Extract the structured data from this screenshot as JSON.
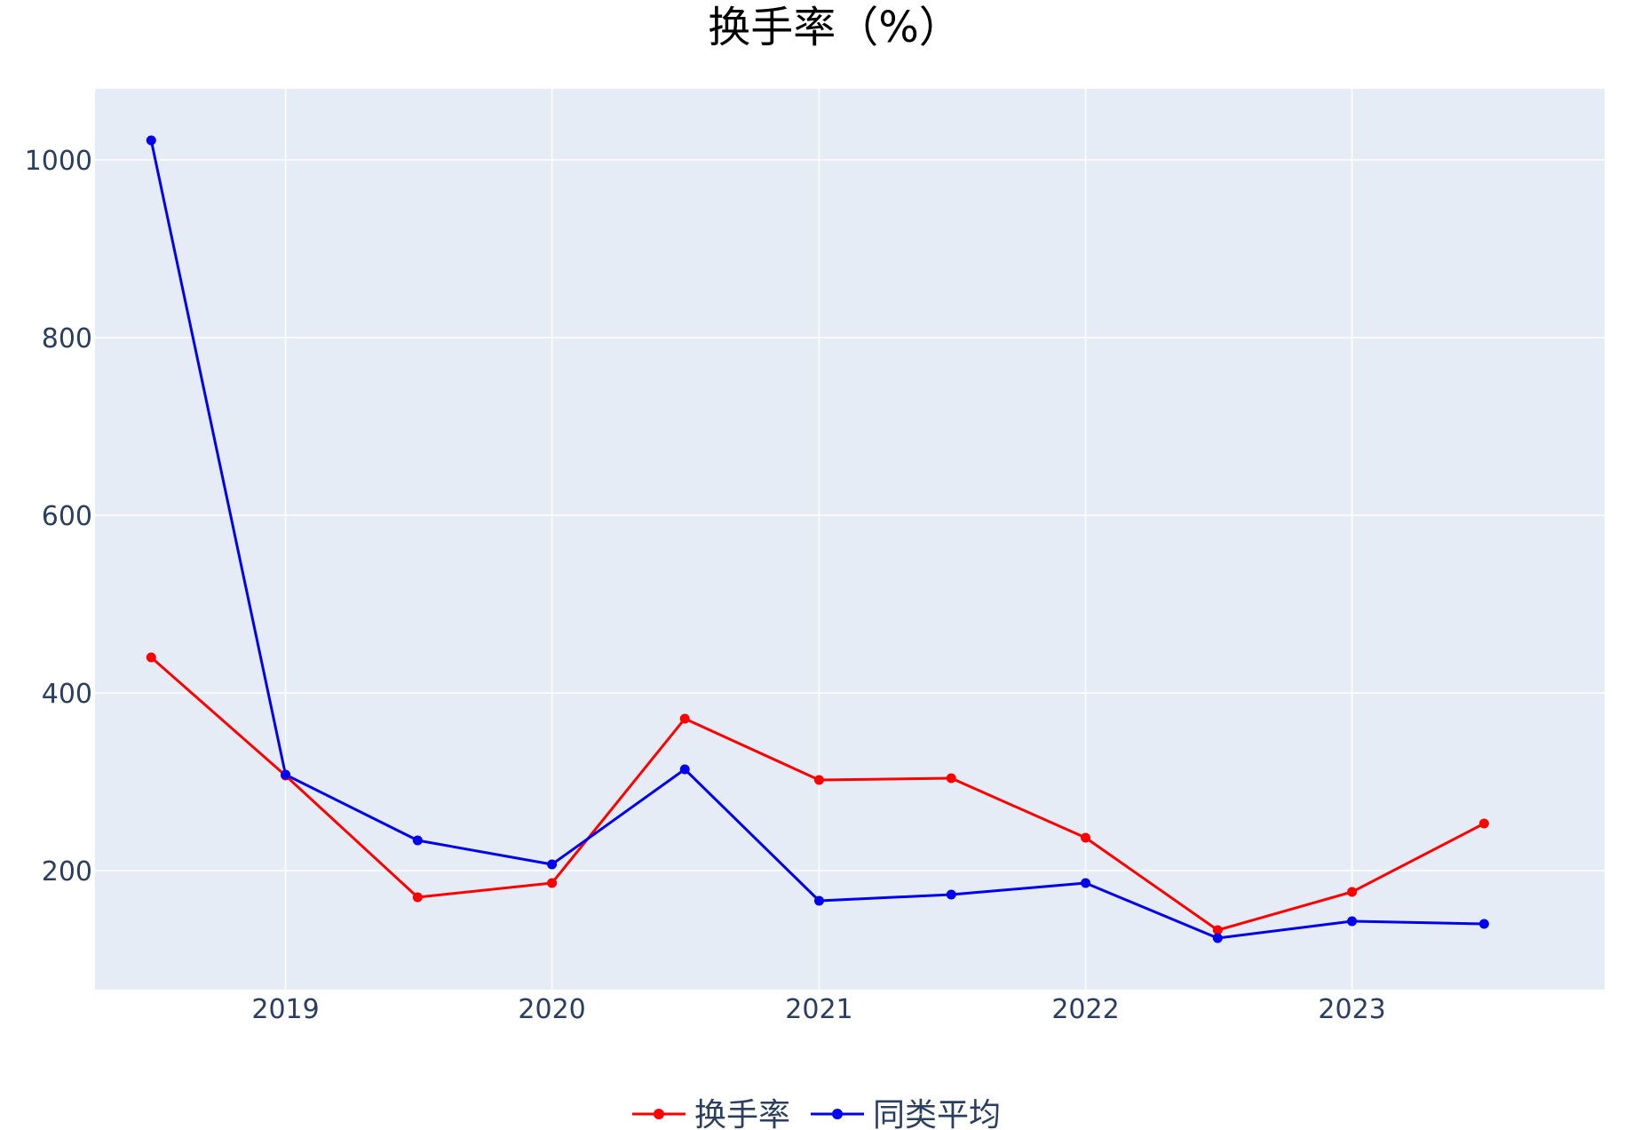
{
  "chart_data": {
    "type": "line",
    "title": "换手率（%）",
    "xlabel": "",
    "ylabel": "",
    "x": [
      "2018-07-01",
      "2019-01-01",
      "2019-07-01",
      "2020-01-01",
      "2020-07-01",
      "2021-01-01",
      "2021-07-01",
      "2022-01-01",
      "2022-07-01",
      "2023-01-01",
      "2023-07-01"
    ],
    "x_ticks": [
      "2019",
      "2020",
      "2021",
      "2022",
      "2023"
    ],
    "y_ticks": [
      200,
      400,
      600,
      800,
      1000
    ],
    "ylim": [
      66,
      1080
    ],
    "grid": true,
    "legend_position": "bottom",
    "series": [
      {
        "name": "换手率",
        "color": "#ff0000",
        "values": [
          440,
          307,
          170,
          186,
          371,
          302,
          304,
          237,
          133,
          176,
          253
        ]
      },
      {
        "name": "同类平均",
        "color": "#0000ee",
        "values": [
          1022,
          308,
          234,
          207,
          314,
          166,
          173,
          186,
          124,
          143,
          140
        ]
      }
    ]
  }
}
